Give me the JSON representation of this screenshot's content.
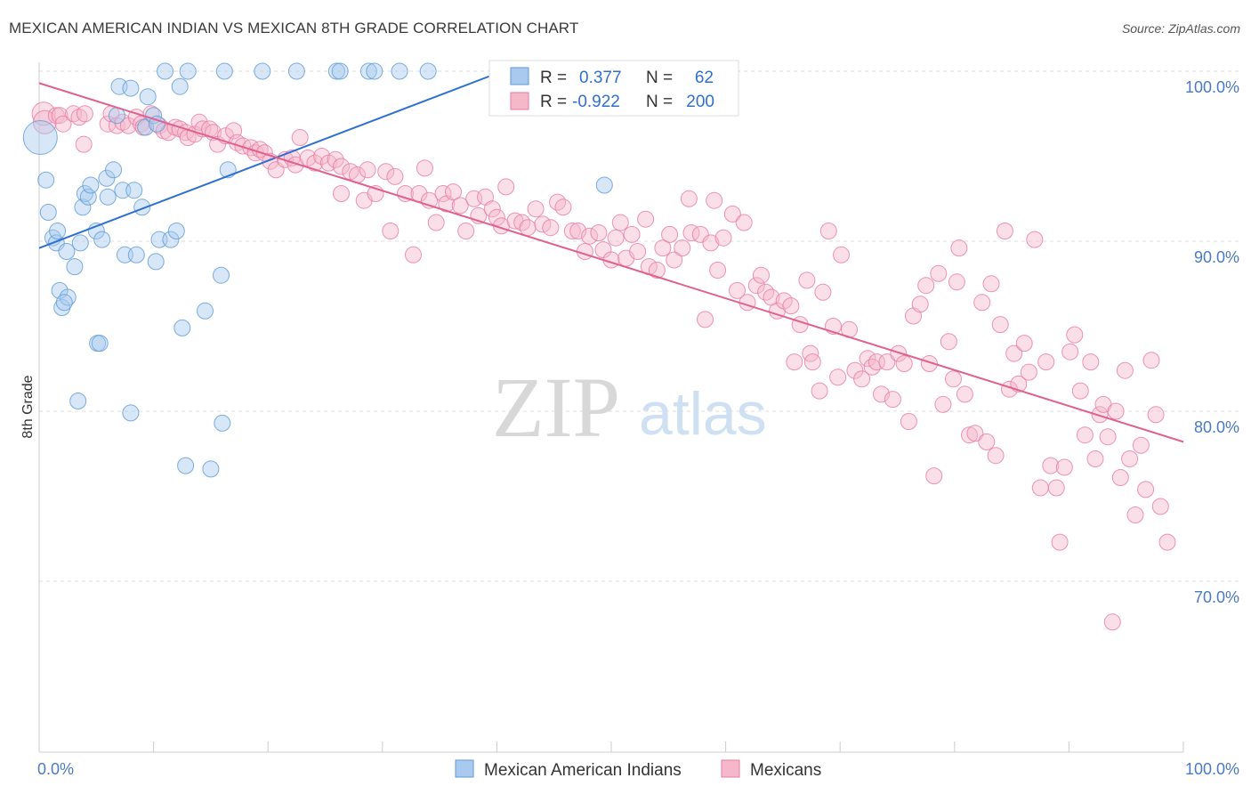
{
  "title": "MEXICAN AMERICAN INDIAN VS MEXICAN 8TH GRADE CORRELATION CHART",
  "source": "Source: ZipAtlas.com",
  "watermark": {
    "zip": "ZIP",
    "atlas": "atlas"
  },
  "colors": {
    "blue": "#5b9bd5",
    "blue_fill": "#a9c9ef",
    "blue_line": "#2f6fd0",
    "pink": "#e87aa0",
    "pink_fill": "#f5b8cb",
    "pink_line": "#e06090",
    "tick": "#4a7ac4"
  },
  "legend": {
    "rows": [
      {
        "r_label": "R =",
        "r_value": "0.377",
        "n_label": "N =",
        "n_value": "62"
      },
      {
        "r_label": "R =",
        "r_value": "-0.922",
        "n_label": "N =",
        "n_value": "200"
      }
    ]
  },
  "bottom_legend": [
    "Mexican American Indians",
    "Mexicans"
  ],
  "chart_data": {
    "type": "scatter",
    "title": "MEXICAN AMERICAN INDIAN VS MEXICAN 8TH GRADE CORRELATION CHART",
    "xlabel": "",
    "ylabel": "8th Grade",
    "x_tick_labels": [
      "0.0%",
      "100.0%"
    ],
    "y_tick_labels": [
      "100.0%",
      "90.0%",
      "80.0%",
      "70.0%"
    ],
    "y_ticks": [
      100,
      90,
      80,
      70
    ],
    "xlim": [
      0,
      100
    ],
    "ylim": [
      60,
      102
    ],
    "grid": true,
    "legend_position": "top-center",
    "series": [
      {
        "name": "Mexican American Indians",
        "r": 0.377,
        "n": 62,
        "trend": {
          "x": [
            0,
            40.5
          ],
          "y": [
            89.6,
            100.0
          ]
        },
        "points": [
          [
            0.1,
            96.1
          ],
          [
            0.6,
            93.6
          ],
          [
            0.8,
            91.7
          ],
          [
            1.2,
            90.2
          ],
          [
            1.5,
            89.9
          ],
          [
            1.6,
            90.6
          ],
          [
            2.4,
            89.4
          ],
          [
            3.1,
            88.5
          ],
          [
            1.8,
            87.1
          ],
          [
            2.0,
            86.1
          ],
          [
            2.5,
            86.7
          ],
          [
            2.2,
            86.4
          ],
          [
            3.6,
            89.9
          ],
          [
            3.8,
            92.0
          ],
          [
            4.0,
            92.8
          ],
          [
            4.3,
            92.6
          ],
          [
            4.5,
            93.3
          ],
          [
            5.0,
            90.6
          ],
          [
            5.5,
            90.1
          ],
          [
            5.9,
            93.7
          ],
          [
            6.0,
            92.6
          ],
          [
            6.5,
            94.2
          ],
          [
            6.8,
            97.4
          ],
          [
            7.0,
            99.1
          ],
          [
            7.3,
            93.0
          ],
          [
            7.5,
            89.2
          ],
          [
            8.0,
            99.0
          ],
          [
            8.3,
            93.0
          ],
          [
            8.5,
            89.2
          ],
          [
            9.0,
            92.0
          ],
          [
            9.3,
            96.7
          ],
          [
            9.5,
            98.5
          ],
          [
            10.0,
            97.4
          ],
          [
            10.3,
            96.9
          ],
          [
            10.2,
            88.8
          ],
          [
            10.5,
            90.1
          ],
          [
            11.0,
            100.0
          ],
          [
            11.5,
            90.1
          ],
          [
            12.0,
            90.6
          ],
          [
            12.3,
            99.1
          ],
          [
            12.5,
            84.9
          ],
          [
            13.0,
            100.0
          ],
          [
            14.5,
            85.9
          ],
          [
            15.9,
            88.0
          ],
          [
            16.5,
            94.2
          ],
          [
            16.0,
            79.3
          ],
          [
            15.0,
            76.6
          ],
          [
            12.8,
            76.8
          ],
          [
            8.0,
            79.9
          ],
          [
            5.1,
            84.0
          ],
          [
            5.3,
            84.0
          ],
          [
            3.4,
            80.6
          ],
          [
            16.2,
            100.0
          ],
          [
            19.5,
            100.0
          ],
          [
            22.5,
            100.0
          ],
          [
            26.0,
            100.0
          ],
          [
            26.3,
            100.0
          ],
          [
            28.8,
            100.0
          ],
          [
            29.3,
            100.0
          ],
          [
            31.5,
            100.0
          ],
          [
            34.0,
            100.0
          ],
          [
            49.4,
            93.3
          ]
        ]
      },
      {
        "name": "Mexicans",
        "r": -0.922,
        "n": 200,
        "trend": {
          "x": [
            0,
            100
          ],
          "y": [
            99.3,
            78.2
          ]
        },
        "points": [
          [
            0.4,
            97.5
          ],
          [
            0.5,
            97.0
          ],
          [
            1.5,
            97.4
          ],
          [
            1.8,
            97.4
          ],
          [
            2.1,
            96.9
          ],
          [
            3.0,
            97.5
          ],
          [
            3.5,
            97.3
          ],
          [
            4.0,
            97.5
          ],
          [
            3.9,
            95.7
          ],
          [
            6.0,
            96.9
          ],
          [
            6.3,
            97.5
          ],
          [
            6.8,
            96.8
          ],
          [
            7.3,
            97.0
          ],
          [
            7.8,
            96.8
          ],
          [
            8.5,
            97.3
          ],
          [
            8.9,
            96.9
          ],
          [
            9.1,
            96.7
          ],
          [
            9.8,
            97.5
          ],
          [
            10.5,
            96.8
          ],
          [
            10.9,
            96.5
          ],
          [
            11.3,
            96.4
          ],
          [
            11.9,
            96.7
          ],
          [
            12.3,
            96.6
          ],
          [
            12.8,
            96.4
          ],
          [
            13.0,
            96.1
          ],
          [
            13.6,
            96.3
          ],
          [
            14.0,
            97.0
          ],
          [
            14.3,
            96.6
          ],
          [
            14.9,
            96.6
          ],
          [
            15.2,
            96.4
          ],
          [
            15.6,
            95.7
          ],
          [
            16.3,
            96.2
          ],
          [
            17.0,
            96.5
          ],
          [
            17.3,
            95.8
          ],
          [
            17.8,
            95.6
          ],
          [
            18.5,
            95.5
          ],
          [
            18.9,
            95.2
          ],
          [
            19.3,
            95.4
          ],
          [
            19.7,
            95.2
          ],
          [
            20.2,
            94.7
          ],
          [
            20.7,
            94.2
          ],
          [
            21.5,
            94.8
          ],
          [
            22.1,
            94.9
          ],
          [
            22.4,
            94.5
          ],
          [
            22.8,
            96.1
          ],
          [
            23.5,
            94.9
          ],
          [
            24.1,
            94.6
          ],
          [
            24.7,
            95.0
          ],
          [
            25.3,
            94.6
          ],
          [
            25.9,
            94.8
          ],
          [
            26.4,
            94.4
          ],
          [
            26.4,
            92.8
          ],
          [
            27.2,
            94.1
          ],
          [
            27.8,
            93.9
          ],
          [
            28.4,
            92.4
          ],
          [
            28.7,
            94.2
          ],
          [
            29.4,
            92.8
          ],
          [
            30.3,
            94.1
          ],
          [
            30.7,
            90.6
          ],
          [
            31.1,
            93.8
          ],
          [
            32.0,
            92.8
          ],
          [
            32.7,
            89.2
          ],
          [
            33.2,
            92.8
          ],
          [
            33.7,
            94.3
          ],
          [
            34.1,
            92.4
          ],
          [
            34.7,
            91.1
          ],
          [
            35.3,
            92.8
          ],
          [
            35.6,
            92.2
          ],
          [
            36.2,
            92.9
          ],
          [
            36.8,
            92.1
          ],
          [
            37.3,
            90.6
          ],
          [
            38.0,
            92.5
          ],
          [
            38.4,
            91.5
          ],
          [
            39.0,
            92.6
          ],
          [
            39.6,
            91.9
          ],
          [
            40.0,
            91.4
          ],
          [
            40.4,
            90.9
          ],
          [
            40.8,
            93.2
          ],
          [
            41.6,
            91.2
          ],
          [
            42.2,
            91.1
          ],
          [
            42.7,
            90.8
          ],
          [
            43.4,
            91.9
          ],
          [
            44.0,
            91.0
          ],
          [
            44.7,
            90.8
          ],
          [
            45.3,
            92.3
          ],
          [
            45.8,
            92.0
          ],
          [
            46.6,
            90.6
          ],
          [
            47.1,
            90.6
          ],
          [
            47.7,
            89.4
          ],
          [
            48.1,
            90.3
          ],
          [
            48.9,
            90.5
          ],
          [
            49.3,
            89.5
          ],
          [
            50.0,
            88.9
          ],
          [
            50.4,
            90.2
          ],
          [
            50.8,
            91.1
          ],
          [
            51.3,
            89.0
          ],
          [
            51.8,
            90.4
          ],
          [
            52.3,
            89.4
          ],
          [
            53.0,
            91.3
          ],
          [
            53.3,
            88.5
          ],
          [
            54.0,
            88.3
          ],
          [
            54.5,
            89.6
          ],
          [
            55.1,
            90.4
          ],
          [
            55.5,
            88.9
          ],
          [
            56.2,
            89.6
          ],
          [
            56.8,
            92.5
          ],
          [
            57.0,
            90.5
          ],
          [
            57.8,
            90.4
          ],
          [
            58.2,
            85.4
          ],
          [
            58.7,
            89.9
          ],
          [
            59.0,
            92.4
          ],
          [
            59.3,
            88.3
          ],
          [
            59.8,
            90.2
          ],
          [
            60.6,
            91.6
          ],
          [
            61.0,
            87.1
          ],
          [
            61.6,
            91.1
          ],
          [
            61.9,
            86.4
          ],
          [
            62.7,
            87.4
          ],
          [
            63.1,
            88.0
          ],
          [
            63.5,
            87.0
          ],
          [
            64.0,
            86.7
          ],
          [
            64.5,
            85.9
          ],
          [
            65.1,
            86.5
          ],
          [
            65.7,
            86.2
          ],
          [
            66.0,
            82.9
          ],
          [
            66.5,
            85.1
          ],
          [
            67.1,
            87.7
          ],
          [
            67.4,
            83.4
          ],
          [
            67.6,
            82.9
          ],
          [
            68.2,
            81.2
          ],
          [
            68.5,
            87.0
          ],
          [
            69.0,
            90.6
          ],
          [
            69.4,
            85.0
          ],
          [
            69.8,
            82.0
          ],
          [
            70.1,
            89.2
          ],
          [
            70.8,
            84.8
          ],
          [
            71.3,
            82.4
          ],
          [
            71.9,
            81.9
          ],
          [
            72.4,
            83.1
          ],
          [
            72.8,
            82.6
          ],
          [
            73.2,
            82.9
          ],
          [
            73.6,
            81.0
          ],
          [
            74.1,
            82.9
          ],
          [
            74.6,
            80.7
          ],
          [
            75.1,
            83.4
          ],
          [
            75.6,
            82.8
          ],
          [
            76.0,
            79.4
          ],
          [
            76.4,
            85.6
          ],
          [
            77.0,
            86.3
          ],
          [
            77.5,
            87.4
          ],
          [
            77.8,
            82.8
          ],
          [
            78.2,
            76.2
          ],
          [
            78.6,
            88.1
          ],
          [
            79.0,
            80.4
          ],
          [
            79.5,
            84.1
          ],
          [
            79.9,
            81.9
          ],
          [
            80.2,
            87.6
          ],
          [
            80.4,
            89.6
          ],
          [
            80.9,
            81.0
          ],
          [
            81.3,
            78.6
          ],
          [
            81.8,
            78.7
          ],
          [
            82.4,
            86.4
          ],
          [
            82.8,
            78.2
          ],
          [
            83.2,
            87.5
          ],
          [
            83.6,
            77.4
          ],
          [
            84.0,
            85.1
          ],
          [
            84.4,
            90.6
          ],
          [
            84.8,
            81.3
          ],
          [
            85.2,
            83.4
          ],
          [
            85.6,
            81.6
          ],
          [
            86.1,
            84.0
          ],
          [
            86.5,
            82.3
          ],
          [
            87.0,
            90.1
          ],
          [
            87.5,
            75.5
          ],
          [
            88.0,
            82.9
          ],
          [
            88.4,
            76.8
          ],
          [
            88.9,
            75.5
          ],
          [
            89.2,
            72.3
          ],
          [
            89.6,
            76.7
          ],
          [
            90.1,
            83.5
          ],
          [
            90.5,
            84.5
          ],
          [
            91.0,
            81.2
          ],
          [
            91.4,
            78.6
          ],
          [
            91.9,
            82.9
          ],
          [
            92.3,
            77.2
          ],
          [
            92.7,
            79.8
          ],
          [
            93.0,
            80.4
          ],
          [
            93.4,
            78.5
          ],
          [
            93.8,
            67.6
          ],
          [
            94.1,
            80.0
          ],
          [
            94.5,
            76.1
          ],
          [
            94.9,
            82.4
          ],
          [
            95.3,
            77.2
          ],
          [
            95.8,
            73.9
          ],
          [
            96.3,
            78.0
          ],
          [
            96.7,
            75.4
          ],
          [
            97.2,
            83.0
          ],
          [
            97.6,
            79.8
          ],
          [
            98.0,
            74.4
          ],
          [
            98.6,
            72.3
          ]
        ]
      }
    ]
  }
}
